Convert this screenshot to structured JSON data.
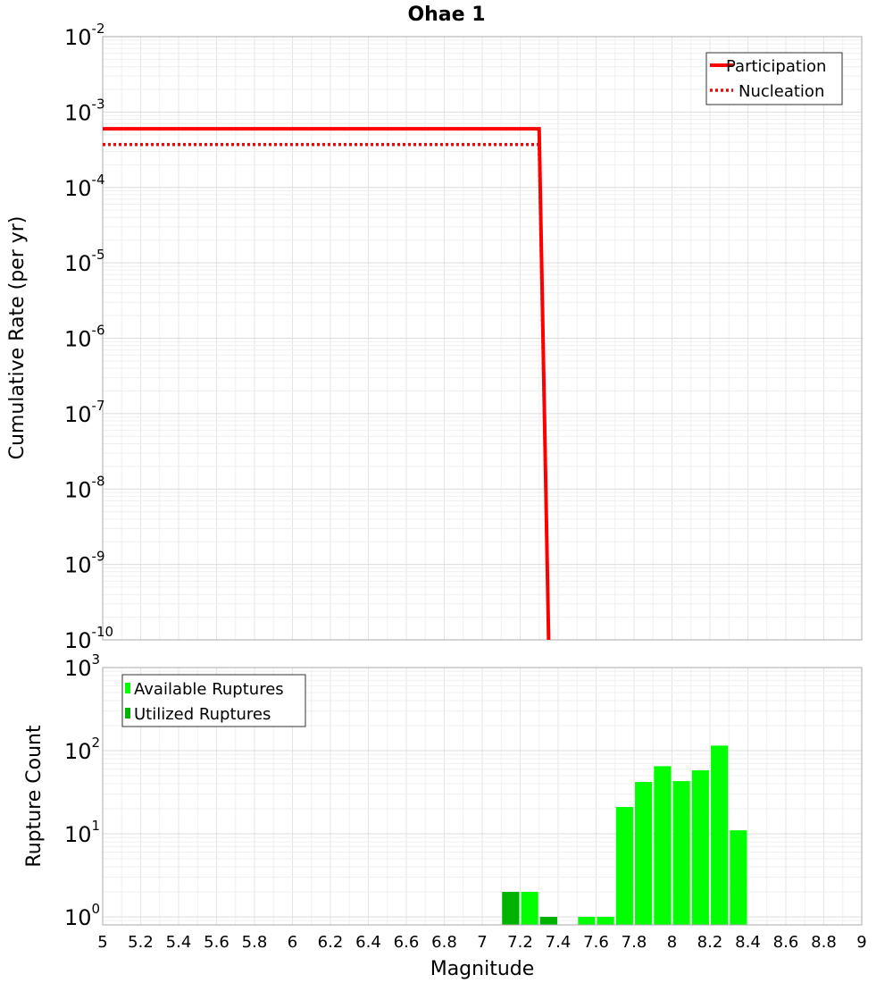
{
  "chart_data": [
    {
      "type": "line",
      "title": "Ohae 1",
      "xlabel": "",
      "ylabel": "Cumulative Rate (per yr)",
      "xlim": [
        5,
        9
      ],
      "ylim": [
        1e-10,
        0.01
      ],
      "yscale": "log",
      "y_tick_labels": [
        {
          "base": "10",
          "exp": "-10"
        },
        {
          "base": "10",
          "exp": "-9"
        },
        {
          "base": "10",
          "exp": "-8"
        },
        {
          "base": "10",
          "exp": "-7"
        },
        {
          "base": "10",
          "exp": "-6"
        },
        {
          "base": "10",
          "exp": "-5"
        },
        {
          "base": "10",
          "exp": "-4"
        },
        {
          "base": "10",
          "exp": "-3"
        },
        {
          "base": "10",
          "exp": "-2"
        }
      ],
      "legend_position": "top-right",
      "series": [
        {
          "name": "Participation",
          "style": "solid",
          "color": "#ff0000",
          "x": [
            5,
            7.3,
            7.35
          ],
          "y": [
            0.0006,
            0.0006,
            1e-10
          ]
        },
        {
          "name": "Nucleation",
          "style": "dotted",
          "color": "#ff0000",
          "x": [
            5,
            7.3,
            7.35
          ],
          "y": [
            0.00037,
            0.00037,
            1e-10
          ]
        }
      ]
    },
    {
      "type": "bar",
      "title": "",
      "xlabel": "Magnitude",
      "ylabel": "Rupture Count",
      "xlim": [
        5,
        9
      ],
      "ylim": [
        0.8,
        1000
      ],
      "yscale": "log",
      "bar_width": 0.09,
      "y_tick_labels": [
        {
          "base": "10",
          "exp": "0"
        },
        {
          "base": "10",
          "exp": "1"
        },
        {
          "base": "10",
          "exp": "2"
        },
        {
          "base": "10",
          "exp": "3"
        }
      ],
      "x_tick_labels": [
        "5",
        "5.2",
        "5.4",
        "5.6",
        "5.8",
        "6",
        "6.2",
        "6.4",
        "6.6",
        "6.8",
        "7",
        "7.2",
        "7.4",
        "7.6",
        "7.8",
        "8",
        "8.2",
        "8.4",
        "8.6",
        "8.8",
        "9"
      ],
      "legend_position": "top-left",
      "series": [
        {
          "name": "Available Ruptures",
          "color": "#00ff00",
          "x": [
            7.15,
            7.25,
            7.35,
            7.55,
            7.65,
            7.75,
            7.85,
            7.95,
            8.05,
            8.15,
            8.25,
            8.35
          ],
          "values": [
            2,
            2,
            1,
            1,
            1,
            21,
            42,
            65,
            43,
            58,
            115,
            11
          ]
        },
        {
          "name": "Utilized Ruptures",
          "color": "#00b300",
          "x": [
            7.15,
            7.35
          ],
          "values": [
            2,
            1
          ]
        }
      ]
    }
  ]
}
